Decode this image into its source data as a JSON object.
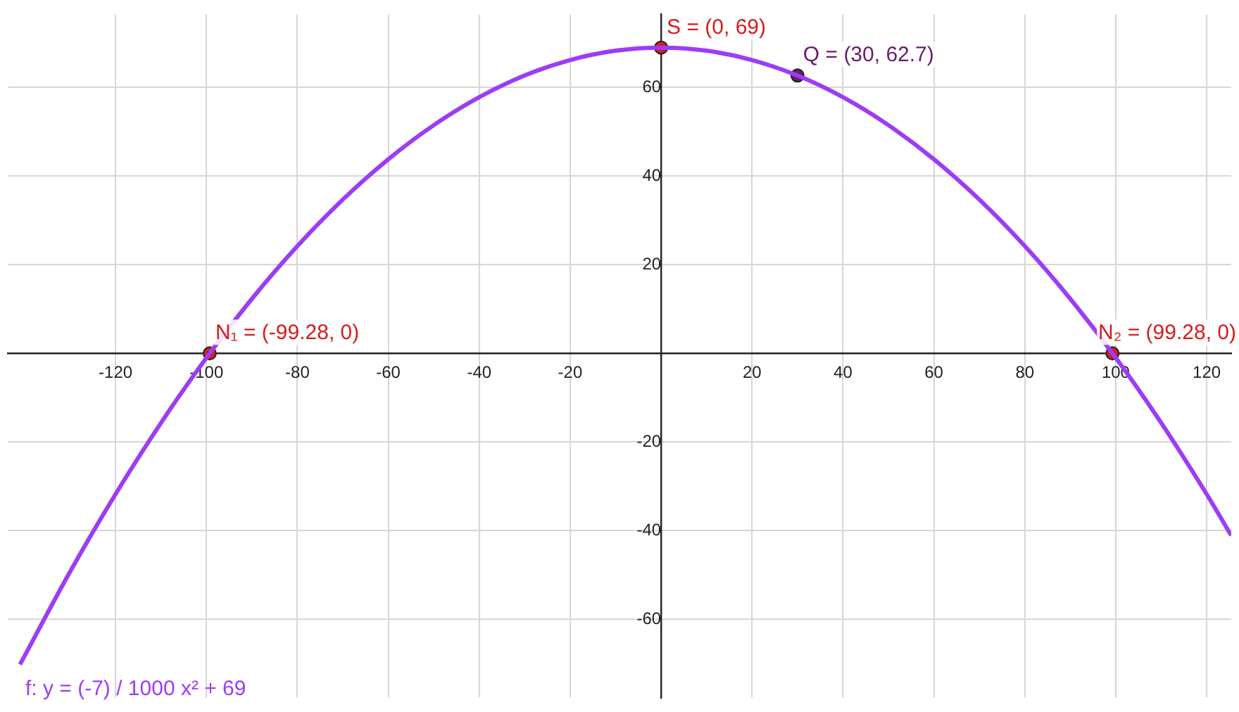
{
  "chart_data": {
    "type": "line",
    "xlim": [
      -143.7,
      125.4
    ],
    "ylim": [
      -77.7,
      76.5
    ],
    "xticks": [
      -120,
      -100,
      -80,
      -60,
      -40,
      -20,
      {
        "value": 0,
        "label": null
      },
      20,
      40,
      60,
      80,
      100,
      120
    ],
    "yticks": [
      -60,
      -40,
      -20,
      {
        "value": 0,
        "label": null
      },
      20,
      40,
      60
    ],
    "grid": true,
    "legend": false,
    "series": [
      {
        "color": "#9d3cf5",
        "marker": "none",
        "x": [
          -141,
          -130,
          -120,
          -110,
          -100,
          -90,
          -80,
          -70,
          -60,
          -50,
          -40,
          -30,
          -20,
          -10,
          0,
          10,
          20,
          30,
          40,
          50,
          60,
          70,
          80,
          90,
          100,
          110,
          120,
          125.4
        ],
        "values": [
          -70.2,
          -49.3,
          -31.8,
          -15.7,
          -1,
          12.3,
          24.2,
          34.7,
          43.8,
          51.5,
          57.8,
          62.7,
          66.2,
          68.3,
          69,
          68.3,
          66.2,
          62.7,
          57.8,
          51.5,
          43.8,
          34.7,
          24.2,
          12.3,
          -1,
          -15.7,
          -31.8,
          -41.1
        ]
      },
      {
        "type": "scatter",
        "color": "#d81b1b",
        "marker": "circle",
        "x": [
          0,
          -99.28,
          99.28
        ],
        "values": [
          69,
          0,
          0
        ]
      },
      {
        "type": "scatter",
        "color": "#6a1b6a",
        "marker": "circle",
        "x": [
          30
        ],
        "values": [
          62.7
        ]
      }
    ],
    "annotations": [
      {
        "text": "S = (0, 69)",
        "x": 0,
        "y": 69
      },
      {
        "text": "Q = (30, 62.7)",
        "x": 30,
        "y": 62.7
      },
      {
        "text": "N₁ = (-99.28, 0)",
        "x": -99.28,
        "y": 0
      },
      {
        "text": "N₂ = (99.28, 0)",
        "x": 99.28,
        "y": 0
      },
      "f: y = (-7) / 1000 x² + 69"
    ]
  }
}
